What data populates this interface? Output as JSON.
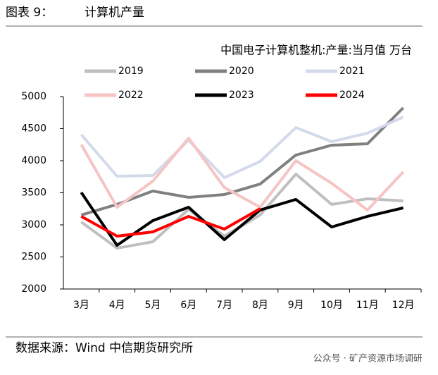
{
  "header": {
    "label": "图表 9：",
    "title": "计算机产量"
  },
  "footer": {
    "source": "数据来源：Wind 中信期货研究所",
    "watermark": "公众号 · 矿产资源市场调研"
  },
  "chart_data": {
    "type": "line",
    "title": "中国电子计算机整机:产量:当月值 万台",
    "categories": [
      "3月",
      "4月",
      "5月",
      "6月",
      "7月",
      "8月",
      "9月",
      "10月",
      "11月",
      "12月"
    ],
    "ylim": [
      2000,
      5000
    ],
    "yticks": [
      2000,
      2500,
      3000,
      3500,
      4000,
      4500,
      5000
    ],
    "series": [
      {
        "name": "2019",
        "color": "#bfbfbf",
        "values": [
          3044,
          2637,
          2736,
          3242,
          2824,
          3154,
          3791,
          3319,
          3407,
          3374
        ]
      },
      {
        "name": "2020",
        "color": "#808080",
        "values": [
          3154,
          3319,
          3527,
          3429,
          3473,
          3637,
          4088,
          4242,
          4264,
          4824
        ]
      },
      {
        "name": "2021",
        "color": "#d3dbea",
        "values": [
          4407,
          3758,
          3769,
          4319,
          3736,
          3989,
          4516,
          4297,
          4429,
          4681
        ]
      },
      {
        "name": "2022",
        "color": "#f5c4c4",
        "values": [
          4253,
          3275,
          3681,
          4352,
          3582,
          3275,
          4000,
          3648,
          3231,
          3824
        ]
      },
      {
        "name": "2023",
        "color": "#000000",
        "values": [
          3505,
          2681,
          3066,
          3275,
          2769,
          3231,
          3396,
          2967,
          3132,
          3264
        ]
      },
      {
        "name": "2024",
        "color": "#ff0000",
        "values": [
          3132,
          2824,
          2890,
          3132,
          2934,
          3253,
          null,
          null,
          null,
          null
        ]
      }
    ]
  }
}
